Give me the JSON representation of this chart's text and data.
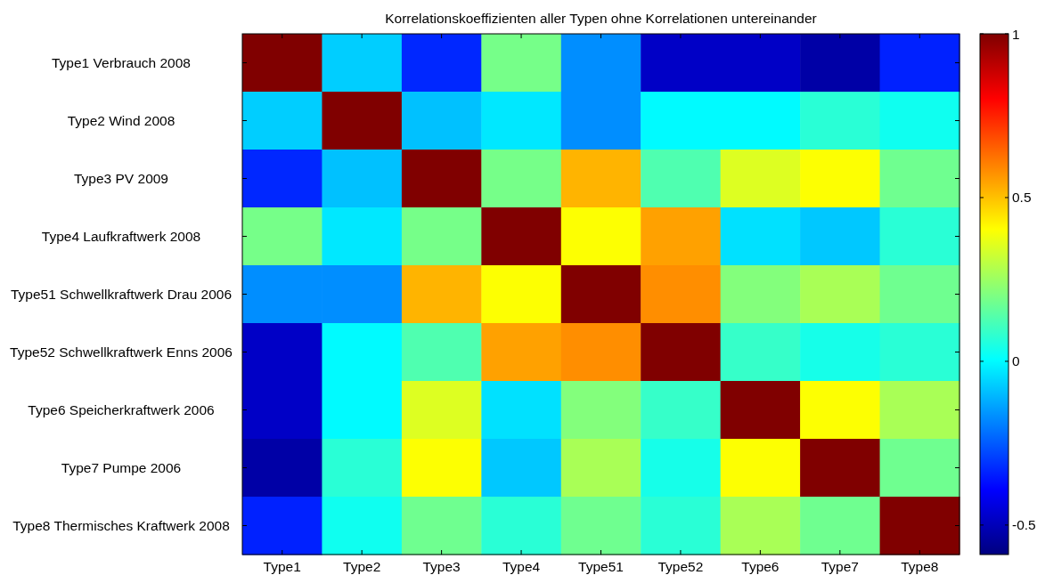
{
  "chart_data": {
    "type": "heatmap",
    "title": "Korrelationskoeffizienten aller Typen ohne Korrelationen untereinander",
    "categories": [
      "Type1",
      "Type2",
      "Type3",
      "Type4",
      "Type51",
      "Type52",
      "Type6",
      "Type7",
      "Type8"
    ],
    "y_categories": [
      "Type1 Verbrauch 2008",
      "Type2 Wind 2008",
      "Type3 PV 2009",
      "Type4 Laufkraftwerk 2008",
      "Type51 Schwellkraftwerk Drau 2006",
      "Type52 Schwellkraftwerk Enns 2006",
      "Type6 Speicherkraftwerk 2006",
      "Type7 Pumpe 2006",
      "Type8 Thermisches Kraftwerk 2008"
    ],
    "cells": [
      [
        1,
        -0.07,
        -0.33,
        0.19,
        -0.17,
        -0.48,
        -0.48,
        -0.53,
        -0.34
      ],
      [
        -0.07,
        1,
        -0.09,
        -0.03,
        -0.17,
        0.0,
        0.0,
        0.07,
        0.03
      ],
      [
        -0.33,
        -0.09,
        1,
        0.19,
        0.52,
        0.13,
        0.35,
        0.4,
        0.18
      ],
      [
        0.19,
        -0.03,
        0.19,
        1,
        0.4,
        0.55,
        -0.04,
        -0.08,
        0.07
      ],
      [
        -0.17,
        -0.17,
        0.52,
        0.4,
        1,
        0.58,
        0.21,
        0.27,
        0.18
      ],
      [
        -0.48,
        0.0,
        0.13,
        0.55,
        0.58,
        1,
        0.09,
        0.04,
        0.07
      ],
      [
        -0.48,
        0.0,
        0.35,
        -0.04,
        0.21,
        0.09,
        1,
        0.4,
        0.27
      ],
      [
        -0.53,
        0.07,
        0.4,
        -0.08,
        0.27,
        0.04,
        0.4,
        1,
        0.18
      ],
      [
        -0.34,
        0.03,
        0.18,
        0.07,
        0.18,
        0.07,
        0.27,
        0.18,
        1
      ]
    ],
    "clim": [
      -0.59,
      1
    ],
    "cticks": [
      -0.5,
      0,
      0.5,
      1
    ]
  }
}
